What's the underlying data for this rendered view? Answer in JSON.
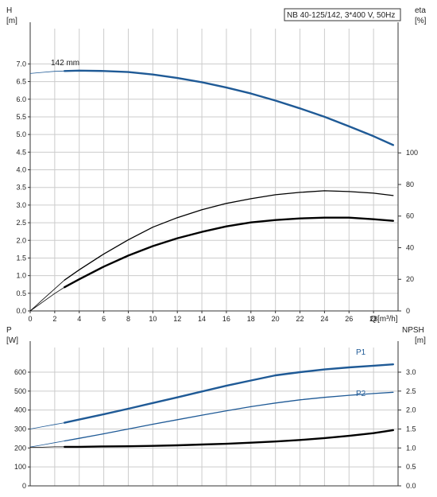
{
  "chart_data": [
    {
      "type": "line",
      "title": "NB 40-125/142, 3*400 V, 50Hz",
      "xlabel": "Q",
      "xunit": "[m³/h]",
      "xlim": [
        0,
        30
      ],
      "xticks": [
        0,
        2,
        4,
        6,
        8,
        10,
        12,
        14,
        16,
        18,
        20,
        22,
        24,
        26,
        28
      ],
      "grid": true,
      "left_axis": {
        "label": "H",
        "unit": "[m]",
        "ylim": [
          0,
          8
        ],
        "ticks": [
          0.0,
          0.5,
          1.0,
          1.5,
          2.0,
          2.5,
          3.0,
          3.5,
          4.0,
          4.5,
          5.0,
          5.5,
          6.0,
          6.5,
          7.0
        ],
        "tick_labels": [
          "0.0",
          "0.5",
          "1.0",
          "1.5",
          "2.0",
          "2.5",
          "3.0",
          "3.5",
          "4.0",
          "4.5",
          "5.0",
          "5.5",
          "6.0",
          "6.5",
          "7.0"
        ]
      },
      "right_axis": {
        "label": "eta",
        "unit": "[%]",
        "ylim": [
          0,
          178.6
        ],
        "ticks": [
          0,
          20,
          40,
          60,
          80,
          100
        ]
      },
      "annotations": [
        {
          "text": "142 mm",
          "x": 4.5,
          "y": 6.82
        }
      ],
      "series": [
        {
          "name": "142 mm",
          "axis": "left",
          "color": "#1f5a96",
          "bold": true,
          "x": [
            2.8,
            4,
            6,
            8,
            10,
            12,
            14,
            16,
            18,
            20,
            22,
            24,
            26,
            28,
            29.6
          ],
          "y": [
            6.8,
            6.81,
            6.8,
            6.77,
            6.7,
            6.6,
            6.48,
            6.33,
            6.16,
            5.96,
            5.74,
            5.5,
            5.23,
            4.95,
            4.7
          ],
          "extension": {
            "x": [
              0,
              1,
              2,
              2.8
            ],
            "y": [
              6.73,
              6.76,
              6.79,
              6.8
            ]
          }
        },
        {
          "name": "",
          "axis": "right",
          "color": "#000000",
          "bold": false,
          "x": [
            2.8,
            4,
            6,
            8,
            10,
            12,
            14,
            16,
            18,
            20,
            22,
            24,
            26,
            28,
            29.6
          ],
          "y": [
            19.5,
            26,
            36,
            45,
            53,
            59,
            64,
            68,
            71,
            73.5,
            75,
            76,
            75.5,
            74.5,
            73
          ],
          "extension": {
            "x": [
              0,
              1,
              2,
              2.8
            ],
            "y": [
              0,
              7,
              14,
              19.5
            ]
          }
        },
        {
          "name": "",
          "axis": "right",
          "color": "#000000",
          "bold": true,
          "x": [
            2.8,
            4,
            6,
            8,
            10,
            12,
            14,
            16,
            18,
            20,
            22,
            24,
            26,
            28,
            29.6
          ],
          "y": [
            15,
            20,
            28,
            35,
            41,
            46,
            50,
            53.5,
            56,
            57.5,
            58.5,
            59,
            59,
            58,
            57
          ],
          "extension": {
            "x": [
              0,
              1,
              2,
              2.8
            ],
            "y": [
              0,
              5.5,
              11,
              15
            ]
          }
        }
      ]
    },
    {
      "type": "line",
      "xlim": [
        0,
        30
      ],
      "grid": true,
      "left_axis": {
        "label": "P",
        "unit": "[W]",
        "ylim": [
          0,
          730
        ],
        "ticks": [
          0,
          100,
          200,
          300,
          400,
          500,
          600
        ]
      },
      "right_axis": {
        "label": "NPSH",
        "unit": "[m]",
        "ylim": [
          0,
          3.65
        ],
        "ticks": [
          0.0,
          0.5,
          1.0,
          1.5,
          2.0,
          2.5,
          3.0
        ],
        "tick_labels": [
          "0.0",
          "0.5",
          "1.0",
          "1.5",
          "2.0",
          "2.5",
          "3.0"
        ]
      },
      "series": [
        {
          "name": "P1",
          "axis": "left",
          "color": "#1f5a96",
          "bold": true,
          "x": [
            2.8,
            4,
            6,
            8,
            10,
            12,
            14,
            16,
            18,
            20,
            22,
            24,
            26,
            28,
            29.6
          ],
          "y": [
            333,
            350,
            378,
            407,
            437,
            467,
            498,
            528,
            556,
            583,
            600,
            614,
            625,
            634,
            641
          ],
          "extension": {
            "x": [
              0,
              1,
              2,
              2.8
            ],
            "y": [
              300,
              312,
              324,
              333
            ]
          }
        },
        {
          "name": "P2",
          "axis": "left",
          "color": "#1f5a96",
          "bold": false,
          "x": [
            2.8,
            4,
            6,
            8,
            10,
            12,
            14,
            16,
            18,
            20,
            22,
            24,
            26,
            28,
            29.6
          ],
          "y": [
            237,
            251,
            275,
            300,
            325,
            349,
            373,
            396,
            418,
            437,
            454,
            467,
            478,
            487,
            494
          ],
          "extension": {
            "x": [
              0,
              1,
              2,
              2.8
            ],
            "y": [
              205,
              216,
              228,
              237
            ]
          }
        },
        {
          "name": "",
          "axis": "right",
          "color": "#000000",
          "bold": true,
          "x": [
            2.8,
            4,
            6,
            8,
            10,
            12,
            14,
            16,
            18,
            20,
            22,
            24,
            26,
            28,
            29.6
          ],
          "y": [
            1.03,
            1.03,
            1.04,
            1.045,
            1.055,
            1.07,
            1.09,
            1.11,
            1.14,
            1.17,
            1.21,
            1.26,
            1.32,
            1.39,
            1.47
          ],
          "extension": {
            "x": [
              0,
              1,
              2,
              2.8
            ],
            "y": [
              1.02,
              1.02,
              1.03,
              1.03
            ]
          }
        }
      ]
    }
  ]
}
